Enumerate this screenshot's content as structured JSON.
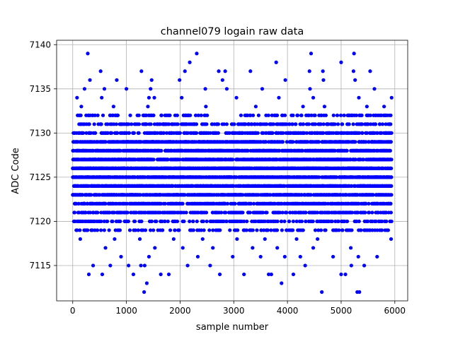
{
  "chart_data": {
    "type": "scatter",
    "title": "channel079 logain raw data",
    "xlabel": "sample number",
    "ylabel": "ADC Code",
    "xlim": [
      -300,
      6240
    ],
    "ylim": [
      7111,
      7140.5
    ],
    "xticks": [
      0,
      1000,
      2000,
      3000,
      4000,
      5000,
      6000
    ],
    "yticks": [
      7115,
      7120,
      7125,
      7130,
      7135,
      7140
    ],
    "grid": true,
    "marker_color": "#0000ff",
    "n_samples": 5940,
    "band": {
      "min": 7119,
      "max": 7132
    },
    "outliers": [
      [
        280,
        7139
      ],
      [
        2310,
        7139
      ],
      [
        4440,
        7139
      ],
      [
        5240,
        7139
      ],
      [
        1330,
        7112
      ],
      [
        4640,
        7112
      ],
      [
        5300,
        7112
      ],
      [
        5340,
        7112
      ],
      [
        1380,
        7113
      ],
      [
        3890,
        7113
      ],
      [
        300,
        7114
      ],
      [
        550,
        7114
      ],
      [
        1130,
        7114
      ],
      [
        1640,
        7114
      ],
      [
        1790,
        7114
      ],
      [
        2740,
        7114
      ],
      [
        3190,
        7114
      ],
      [
        3650,
        7114
      ],
      [
        3700,
        7114
      ],
      [
        4110,
        7114
      ],
      [
        5000,
        7114
      ],
      [
        5080,
        7114
      ],
      [
        380,
        7115
      ],
      [
        700,
        7115
      ],
      [
        1040,
        7115
      ],
      [
        1270,
        7115
      ],
      [
        1340,
        7115
      ],
      [
        2140,
        7115
      ],
      [
        2560,
        7115
      ],
      [
        4330,
        7115
      ],
      [
        5190,
        7115
      ],
      [
        5430,
        7115
      ],
      [
        5320,
        7116
      ],
      [
        5670,
        7116
      ],
      [
        900,
        7116
      ],
      [
        1420,
        7116
      ],
      [
        2330,
        7116
      ],
      [
        2980,
        7116
      ],
      [
        3500,
        7116
      ],
      [
        3950,
        7116
      ],
      [
        4240,
        7116
      ],
      [
        4850,
        7116
      ],
      [
        610,
        7117
      ],
      [
        1530,
        7117
      ],
      [
        2050,
        7117
      ],
      [
        2610,
        7117
      ],
      [
        3350,
        7117
      ],
      [
        3810,
        7117
      ],
      [
        4480,
        7117
      ],
      [
        5180,
        7117
      ],
      [
        140,
        7118
      ],
      [
        780,
        7118
      ],
      [
        1250,
        7118
      ],
      [
        1880,
        7118
      ],
      [
        2420,
        7118
      ],
      [
        3060,
        7118
      ],
      [
        3580,
        7118
      ],
      [
        4170,
        7118
      ],
      [
        4560,
        7118
      ],
      [
        5930,
        7118
      ],
      [
        160,
        7133
      ],
      [
        760,
        7133
      ],
      [
        1400,
        7133
      ],
      [
        2480,
        7133
      ],
      [
        3410,
        7133
      ],
      [
        4290,
        7133
      ],
      [
        4690,
        7133
      ],
      [
        5480,
        7133
      ],
      [
        5800,
        7133
      ],
      [
        80,
        7134
      ],
      [
        540,
        7134
      ],
      [
        1420,
        7134
      ],
      [
        1520,
        7134
      ],
      [
        2030,
        7134
      ],
      [
        3050,
        7134
      ],
      [
        3840,
        7134
      ],
      [
        4480,
        7134
      ],
      [
        5330,
        7134
      ],
      [
        5940,
        7134
      ],
      [
        220,
        7135
      ],
      [
        590,
        7135
      ],
      [
        1000,
        7135
      ],
      [
        1450,
        7135
      ],
      [
        2470,
        7135
      ],
      [
        2870,
        7135
      ],
      [
        3530,
        7135
      ],
      [
        4420,
        7135
      ],
      [
        5620,
        7135
      ],
      [
        320,
        7136
      ],
      [
        820,
        7136
      ],
      [
        1470,
        7136
      ],
      [
        1990,
        7136
      ],
      [
        2790,
        7136
      ],
      [
        3960,
        7136
      ],
      [
        4670,
        7136
      ],
      [
        5260,
        7136
      ],
      [
        520,
        7137
      ],
      [
        1280,
        7137
      ],
      [
        2090,
        7137
      ],
      [
        2720,
        7137
      ],
      [
        2840,
        7137
      ],
      [
        3310,
        7137
      ],
      [
        4410,
        7137
      ],
      [
        4660,
        7137
      ],
      [
        5230,
        7137
      ],
      [
        5540,
        7137
      ],
      [
        2180,
        7138
      ],
      [
        3790,
        7138
      ],
      [
        5000,
        7138
      ]
    ]
  }
}
